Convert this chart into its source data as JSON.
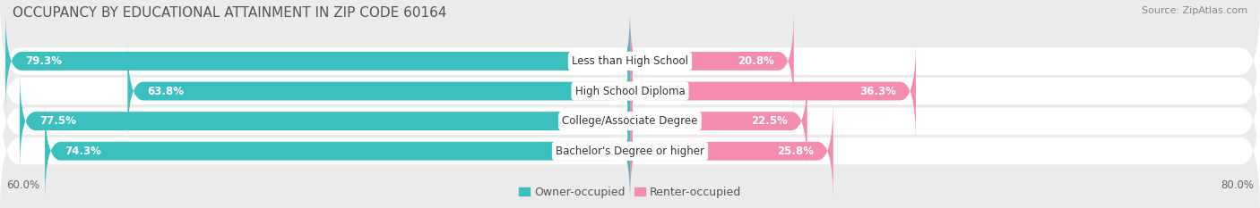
{
  "title": "OCCUPANCY BY EDUCATIONAL ATTAINMENT IN ZIP CODE 60164",
  "source": "Source: ZipAtlas.com",
  "categories": [
    "Less than High School",
    "High School Diploma",
    "College/Associate Degree",
    "Bachelor's Degree or higher"
  ],
  "owner_values": [
    79.3,
    63.8,
    77.5,
    74.3
  ],
  "renter_values": [
    20.8,
    36.3,
    22.5,
    25.8
  ],
  "owner_color": "#3bbfbf",
  "renter_color": "#f48cb0",
  "owner_label": "Owner-occupied",
  "renter_label": "Renter-occupied",
  "xlim_left": -80.0,
  "xlim_right": 80.0,
  "x_tick_label_left": "60.0%",
  "x_tick_label_right": "80.0%",
  "background_color": "#ebebeb",
  "bar_bg_color": "#ffffff",
  "title_fontsize": 11,
  "source_fontsize": 8,
  "label_fontsize": 8.5,
  "bar_height": 0.62
}
